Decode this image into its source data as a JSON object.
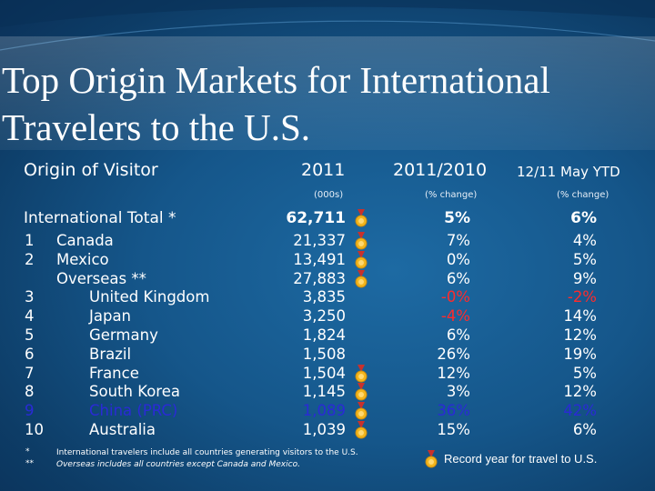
{
  "title": "Top Origin Markets for International Travelers to the U.S.",
  "columns": {
    "origin": "Origin of Visitor",
    "year": "2011",
    "change": "2011/2010",
    "ytd": "12/11 May YTD",
    "year_sub": "(000s)",
    "change_sub": "(% change)",
    "ytd_sub": "(% change)"
  },
  "total": {
    "label": "International Total *",
    "value": "62,711",
    "change": "5%",
    "ytd": "6%"
  },
  "rows": [
    {
      "rank": "1",
      "name": "Canada",
      "value": "21,337",
      "change": "7%",
      "ytd": "4%"
    },
    {
      "rank": "2",
      "name": "Mexico",
      "value": "13,491",
      "change": "0%",
      "ytd": "5%"
    },
    {
      "rank": "",
      "name": "Overseas **",
      "value": "27,883",
      "change": "6%",
      "ytd": "9%"
    },
    {
      "rank": "3",
      "name": "United Kingdom",
      "value": "3,835",
      "change": "-0%",
      "ytd": "-2%"
    },
    {
      "rank": "4",
      "name": "Japan",
      "value": "3,250",
      "change": "-4%",
      "ytd": "14%"
    },
    {
      "rank": "5",
      "name": "Germany",
      "value": "1,824",
      "change": "6%",
      "ytd": "12%"
    },
    {
      "rank": "6",
      "name": "Brazil",
      "value": "1,508",
      "change": "26%",
      "ytd": "19%"
    },
    {
      "rank": "7",
      "name": "France",
      "value": "1,504",
      "change": "12%",
      "ytd": "5%"
    },
    {
      "rank": "8",
      "name": "South Korea",
      "value": "1,145",
      "change": "3%",
      "ytd": "12%"
    },
    {
      "rank": "9",
      "name": "China (PRC)",
      "value": "1,089",
      "change": "36%",
      "ytd": "42%"
    },
    {
      "rank": "10",
      "name": "Australia",
      "value": "1,039",
      "change": "15%",
      "ytd": "6%"
    }
  ],
  "footnotes": [
    {
      "mark": "*",
      "text": "International travelers include all countries generating visitors to the U.S."
    },
    {
      "mark": "**",
      "text": "Overseas includes all countries except Canada and Mexico."
    }
  ],
  "legend": {
    "text": "Record year for travel to U.S.",
    "icon": "medal-icon"
  },
  "colors": {
    "china_row": "#2a2ad6",
    "negative_change": "#ff2b2b",
    "medal": "#f2b51c"
  }
}
